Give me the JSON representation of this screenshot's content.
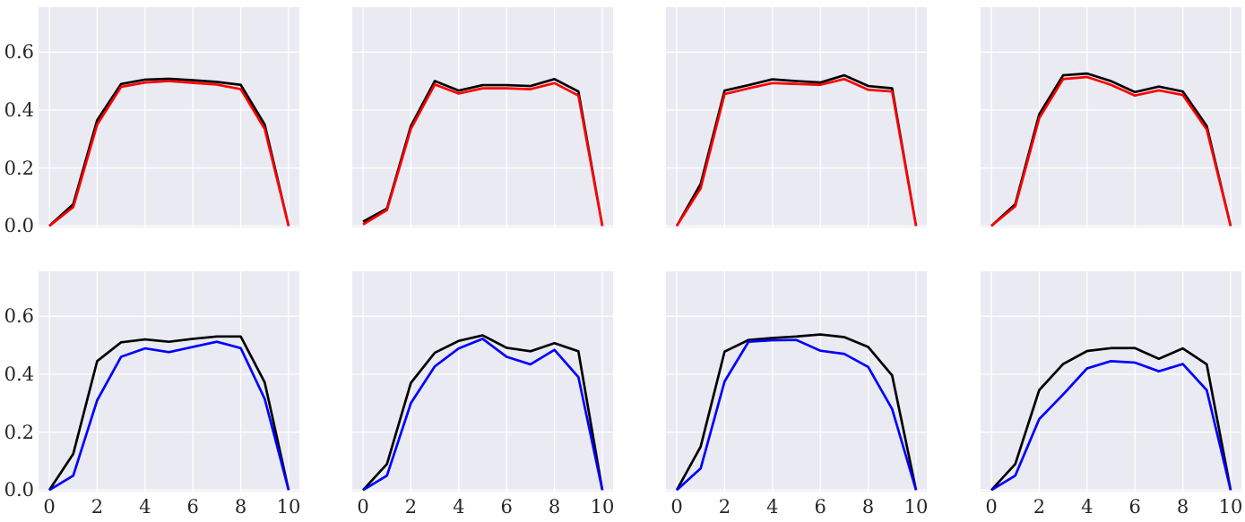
{
  "chart_data": {
    "type": "line",
    "title": "",
    "layout_hint": "2x4 grid of small-multiple line subplots, seaborn darkgrid style, no legend, no axis titles",
    "axes": {
      "x": [
        0,
        1,
        2,
        3,
        4,
        5,
        6,
        7,
        8,
        9,
        10
      ],
      "xlim": [
        -0.45,
        10.45
      ],
      "ylim": [
        -0.005,
        0.755
      ],
      "xticks": [
        0,
        2,
        4,
        6,
        8,
        10
      ],
      "xtick_labels": [
        "0",
        "2",
        "4",
        "6",
        "8",
        "10"
      ],
      "yticks": [
        0.0,
        0.2,
        0.4,
        0.6
      ],
      "ytick_labels": [
        "0.0",
        "0.2",
        "0.4",
        "0.6"
      ],
      "grid": true,
      "x_labels_on": "bottom-row-only",
      "y_labels_on": "left-column-only"
    },
    "colors": {
      "background": "#eaeaf2",
      "gridline": "#ffffff",
      "tick_text": "#262626",
      "black_line": "#000000",
      "red_line": "#ff0000",
      "blue_line": "#0000ff"
    },
    "subplots": [
      {
        "id": "top-1",
        "row": 0,
        "col": 0,
        "series": [
          {
            "name": "black-line",
            "color_key": "black_line",
            "values": [
              0.0,
              0.075,
              0.365,
              0.49,
              0.505,
              0.508,
              0.503,
              0.497,
              0.487,
              0.35,
              0.0
            ]
          },
          {
            "name": "red-line",
            "color_key": "red_line",
            "values": [
              0.0,
              0.065,
              0.35,
              0.48,
              0.495,
              0.5,
              0.494,
              0.488,
              0.472,
              0.335,
              0.0
            ]
          }
        ]
      },
      {
        "id": "top-2",
        "row": 0,
        "col": 1,
        "series": [
          {
            "name": "black-line",
            "color_key": "black_line",
            "values": [
              0.015,
              0.06,
              0.345,
              0.5,
              0.467,
              0.486,
              0.486,
              0.483,
              0.507,
              0.464,
              0.0
            ]
          },
          {
            "name": "red-line",
            "color_key": "red_line",
            "values": [
              0.005,
              0.055,
              0.335,
              0.488,
              0.457,
              0.475,
              0.475,
              0.472,
              0.493,
              0.45,
              0.0
            ]
          }
        ]
      },
      {
        "id": "top-3",
        "row": 0,
        "col": 2,
        "series": [
          {
            "name": "black-line",
            "color_key": "black_line",
            "values": [
              0.0,
              0.145,
              0.467,
              0.486,
              0.506,
              0.5,
              0.495,
              0.52,
              0.483,
              0.475,
              0.0
            ]
          },
          {
            "name": "red-line",
            "color_key": "red_line",
            "values": [
              0.0,
              0.13,
              0.455,
              0.475,
              0.493,
              0.49,
              0.487,
              0.507,
              0.47,
              0.464,
              0.0
            ]
          }
        ]
      },
      {
        "id": "top-4",
        "row": 0,
        "col": 3,
        "series": [
          {
            "name": "black-line",
            "color_key": "black_line",
            "values": [
              0.0,
              0.075,
              0.385,
              0.52,
              0.526,
              0.5,
              0.462,
              0.481,
              0.464,
              0.345,
              0.0
            ]
          },
          {
            "name": "red-line",
            "color_key": "red_line",
            "values": [
              0.0,
              0.068,
              0.372,
              0.507,
              0.514,
              0.487,
              0.45,
              0.468,
              0.452,
              0.333,
              0.0
            ]
          }
        ]
      },
      {
        "id": "bottom-1",
        "row": 1,
        "col": 0,
        "series": [
          {
            "name": "black-line",
            "color_key": "black_line",
            "values": [
              0.0,
              0.125,
              0.445,
              0.51,
              0.52,
              0.512,
              0.522,
              0.53,
              0.53,
              0.372,
              0.0
            ]
          },
          {
            "name": "blue-line",
            "color_key": "blue_line",
            "values": [
              0.0,
              0.05,
              0.31,
              0.46,
              0.489,
              0.476,
              0.494,
              0.512,
              0.49,
              0.315,
              0.0
            ]
          }
        ]
      },
      {
        "id": "bottom-2",
        "row": 1,
        "col": 1,
        "series": [
          {
            "name": "black-line",
            "color_key": "black_line",
            "values": [
              0.0,
              0.09,
              0.37,
              0.474,
              0.515,
              0.534,
              0.491,
              0.479,
              0.507,
              0.479,
              0.0
            ]
          },
          {
            "name": "blue-line",
            "color_key": "blue_line",
            "values": [
              0.0,
              0.05,
              0.3,
              0.427,
              0.489,
              0.522,
              0.46,
              0.434,
              0.484,
              0.39,
              0.0
            ]
          }
        ]
      },
      {
        "id": "bottom-3",
        "row": 1,
        "col": 2,
        "series": [
          {
            "name": "black-line",
            "color_key": "black_line",
            "values": [
              0.0,
              0.15,
              0.478,
              0.518,
              0.525,
              0.53,
              0.537,
              0.528,
              0.494,
              0.396,
              0.0
            ]
          },
          {
            "name": "blue-line",
            "color_key": "blue_line",
            "values": [
              0.0,
              0.075,
              0.375,
              0.512,
              0.517,
              0.518,
              0.481,
              0.47,
              0.425,
              0.28,
              0.0
            ]
          }
        ]
      },
      {
        "id": "bottom-4",
        "row": 1,
        "col": 3,
        "series": [
          {
            "name": "black-line",
            "color_key": "black_line",
            "values": [
              0.0,
              0.09,
              0.345,
              0.435,
              0.48,
              0.49,
              0.49,
              0.453,
              0.489,
              0.434,
              0.0
            ]
          },
          {
            "name": "blue-line",
            "color_key": "blue_line",
            "values": [
              0.0,
              0.05,
              0.245,
              0.33,
              0.42,
              0.445,
              0.44,
              0.41,
              0.435,
              0.345,
              0.0
            ]
          }
        ]
      }
    ]
  }
}
